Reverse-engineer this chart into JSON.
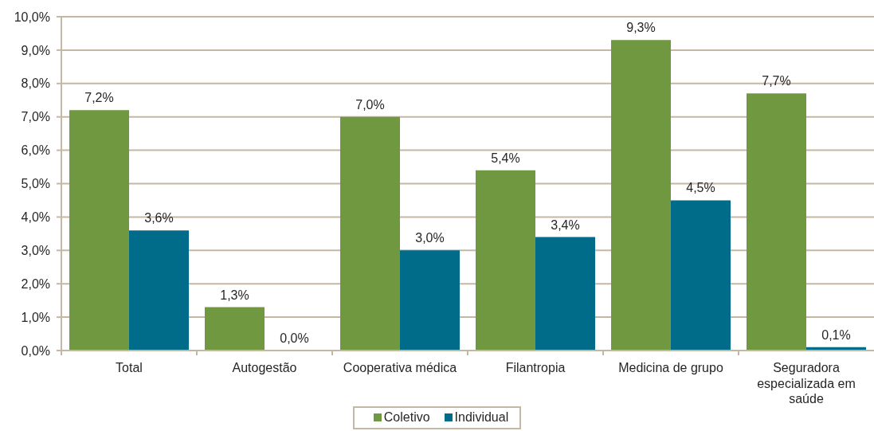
{
  "chart_data": {
    "type": "bar",
    "categories": [
      "Total",
      "Autogestão",
      "Cooperativa médica",
      "Filantropia",
      "Medicina de grupo",
      "Seguradora especializada em saúde"
    ],
    "series": [
      {
        "name": "Coletivo",
        "color": "#6f9840",
        "values": [
          7.2,
          1.3,
          7.0,
          5.4,
          9.3,
          7.7
        ],
        "value_labels": [
          "7,2%",
          "1,3%",
          "7,0%",
          "5,4%",
          "9,3%",
          "7,7%"
        ]
      },
      {
        "name": "Individual",
        "color": "#006c8a",
        "values": [
          3.6,
          0.0,
          3.0,
          3.4,
          4.5,
          0.1
        ],
        "value_labels": [
          "3,6%",
          "0,0%",
          "3,0%",
          "3,4%",
          "4,5%",
          "0,1%"
        ]
      }
    ],
    "ylim": [
      0,
      10
    ],
    "yticks": [
      {
        "value": 0,
        "label": "0,0%"
      },
      {
        "value": 1,
        "label": "1,0%"
      },
      {
        "value": 2,
        "label": "2,0%"
      },
      {
        "value": 3,
        "label": "3,0%"
      },
      {
        "value": 4,
        "label": "4,0%"
      },
      {
        "value": 5,
        "label": "5,0%"
      },
      {
        "value": 6,
        "label": "6,0%"
      },
      {
        "value": 7,
        "label": "7,0%"
      },
      {
        "value": 8,
        "label": "8,0%"
      },
      {
        "value": 9,
        "label": "9,0%"
      },
      {
        "value": 10,
        "label": "10,0%"
      }
    ],
    "grid": "y",
    "legend": "bottom"
  }
}
